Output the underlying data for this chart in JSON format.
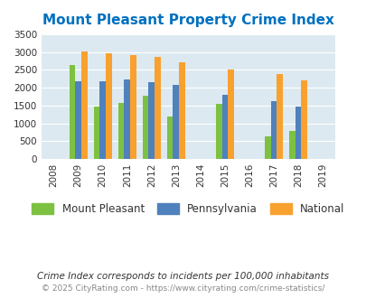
{
  "title": "Mount Pleasant Property Crime Index",
  "years": [
    2008,
    2009,
    2010,
    2011,
    2012,
    2013,
    2014,
    2015,
    2016,
    2017,
    2018,
    2019
  ],
  "data_years": [
    2009,
    2010,
    2011,
    2012,
    2013,
    2015,
    2017,
    2018
  ],
  "mount_pleasant": [
    2630,
    1470,
    1580,
    1780,
    1180,
    1540,
    640,
    790
  ],
  "pennsylvania": [
    2190,
    2170,
    2230,
    2160,
    2070,
    1790,
    1630,
    1480
  ],
  "national": [
    3030,
    2960,
    2920,
    2870,
    2720,
    2500,
    2380,
    2200
  ],
  "ylim": [
    0,
    3500
  ],
  "yticks": [
    0,
    500,
    1000,
    1500,
    2000,
    2500,
    3000,
    3500
  ],
  "bar_width": 0.25,
  "color_mp": "#7dc142",
  "color_pa": "#4f81bd",
  "color_nat": "#f9a12e",
  "bg_color": "#dce9f0",
  "title_color": "#0070c0",
  "label_color": "#444444",
  "footnote1": "Crime Index corresponds to incidents per 100,000 inhabitants",
  "footnote2": "© 2025 CityRating.com - https://www.cityrating.com/crime-statistics/",
  "legend_labels": [
    "Mount Pleasant",
    "Pennsylvania",
    "National"
  ]
}
